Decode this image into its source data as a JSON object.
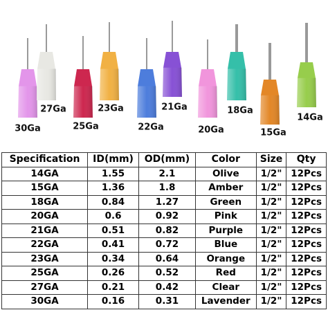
{
  "needle_labels": [
    "30Ga",
    "27Ga",
    "25Ga",
    "23Ga",
    "22Ga",
    "21Ga",
    "20Ga",
    "18Ga",
    "15Ga",
    "14Ga"
  ],
  "table": {
    "header": [
      "Specification",
      "ID(mm)",
      "OD(mm)",
      "Color",
      "Size",
      "Qty"
    ],
    "rows": [
      [
        "14GA",
        1.55,
        2.1,
        "Olive",
        "1/2\"",
        "12Pcs"
      ],
      [
        "15GA",
        1.36,
        1.8,
        "Amber",
        "1/2\"",
        "12Pcs"
      ],
      [
        "18GA",
        0.84,
        1.27,
        "Green",
        "1/2\"",
        "12Pcs"
      ],
      [
        "20GA",
        0.6,
        0.92,
        "Pink",
        "1/2\"",
        "12Pcs"
      ],
      [
        "21GA",
        0.51,
        0.82,
        "Purple",
        "1/2\"",
        "12Pcs"
      ],
      [
        "22GA",
        0.41,
        0.72,
        "Blue",
        "1/2\"",
        "12Pcs"
      ],
      [
        "23GA",
        0.34,
        0.64,
        "Orange",
        "1/2\"",
        "12Pcs"
      ],
      [
        "25GA",
        0.26,
        0.52,
        "Red",
        "1/2\"",
        "12Pcs"
      ],
      [
        "27GA",
        0.21,
        0.42,
        "Clear",
        "1/2\"",
        "12Pcs"
      ],
      [
        "30GA",
        0.16,
        0.31,
        "Lavender",
        "1/2\"",
        "12Pcs"
      ]
    ]
  }
}
